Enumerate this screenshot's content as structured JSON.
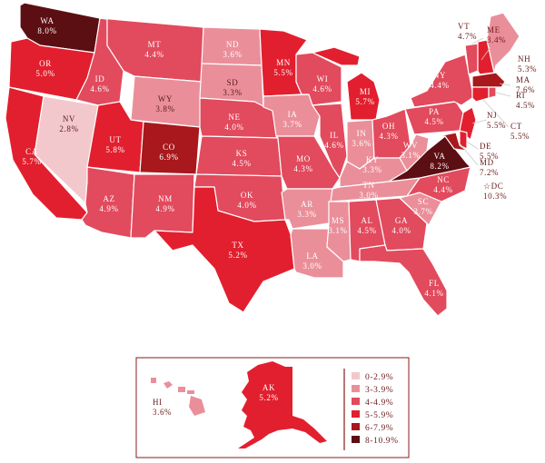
{
  "legend": {
    "bins": [
      {
        "label": "0-2.9%",
        "color": "#f3c8cc"
      },
      {
        "label": "3-3.9%",
        "color": "#ea8f9a"
      },
      {
        "label": "4-4.9%",
        "color": "#e24a5d"
      },
      {
        "label": "5-5.9%",
        "color": "#e21f2e"
      },
      {
        "label": "6-7.9%",
        "color": "#a8181c"
      },
      {
        "label": "8-10.9%",
        "color": "#5c0f13"
      }
    ]
  },
  "states": {
    "WA": {
      "name": "WA",
      "value": "8.0%"
    },
    "OR": {
      "name": "OR",
      "value": "5.0%"
    },
    "CA": {
      "name": "CA",
      "value": "5.7%"
    },
    "NV": {
      "name": "NV",
      "value": "2.8%"
    },
    "ID": {
      "name": "ID",
      "value": "4.6%"
    },
    "MT": {
      "name": "MT",
      "value": "4.4%"
    },
    "WY": {
      "name": "WY",
      "value": "3.8%"
    },
    "UT": {
      "name": "UT",
      "value": "5.8%"
    },
    "CO": {
      "name": "CO",
      "value": "6.9%"
    },
    "AZ": {
      "name": "AZ",
      "value": "4.9%"
    },
    "NM": {
      "name": "NM",
      "value": "4.9%"
    },
    "ND": {
      "name": "ND",
      "value": "3.6%"
    },
    "SD": {
      "name": "SD",
      "value": "3.3%"
    },
    "NE": {
      "name": "NE",
      "value": "4.0%"
    },
    "KS": {
      "name": "KS",
      "value": "4.5%"
    },
    "OK": {
      "name": "OK",
      "value": "4.0%"
    },
    "TX": {
      "name": "TX",
      "value": "5.2%"
    },
    "MN": {
      "name": "MN",
      "value": "5.5%"
    },
    "IA": {
      "name": "IA",
      "value": "3.7%"
    },
    "MO": {
      "name": "MO",
      "value": "4.3%"
    },
    "AR": {
      "name": "AR",
      "value": "3.3%"
    },
    "LA": {
      "name": "LA",
      "value": "3.0%"
    },
    "WI": {
      "name": "WI",
      "value": "4.6%"
    },
    "IL": {
      "name": "IL",
      "value": "4.6%"
    },
    "MI": {
      "name": "MI",
      "value": "5.7%"
    },
    "IN": {
      "name": "IN",
      "value": "3.6%"
    },
    "OH": {
      "name": "OH",
      "value": "4.3%"
    },
    "KY": {
      "name": "KY",
      "value": "3.3%"
    },
    "TN": {
      "name": "TN",
      "value": "3.0%"
    },
    "MS": {
      "name": "MS",
      "value": "3.1%"
    },
    "AL": {
      "name": "AL",
      "value": "4.5%"
    },
    "GA": {
      "name": "GA",
      "value": "4.0%"
    },
    "FL": {
      "name": "FL",
      "value": "4.1%"
    },
    "SC": {
      "name": "SC",
      "value": "3.7%"
    },
    "NC": {
      "name": "NC",
      "value": "4.4%"
    },
    "VA": {
      "name": "VA",
      "value": "8.2%"
    },
    "WV": {
      "name": "WV",
      "value": "3.1%"
    },
    "PA": {
      "name": "PA",
      "value": "4.5%"
    },
    "NY": {
      "name": "NY",
      "value": "4.4%"
    },
    "VT": {
      "name": "VT",
      "value": "4.7%"
    },
    "NH": {
      "name": "NH",
      "value": "5.3%"
    },
    "ME": {
      "name": "ME",
      "value": "3.4%"
    },
    "MA": {
      "name": "MA",
      "value": "7.6%"
    },
    "RI": {
      "name": "RI",
      "value": "4.5%"
    },
    "CT": {
      "name": "CT",
      "value": "5.5%"
    },
    "NJ": {
      "name": "NJ",
      "value": "5.5%"
    },
    "DE": {
      "name": "DE",
      "value": "5.5%"
    },
    "MD": {
      "name": "MD",
      "value": "7.2%"
    },
    "DC": {
      "name": "DC",
      "value": "10.3%",
      "marker": "☆"
    },
    "AK": {
      "name": "AK",
      "value": "5.2%"
    },
    "HI": {
      "name": "HI",
      "value": "3.6%"
    }
  }
}
